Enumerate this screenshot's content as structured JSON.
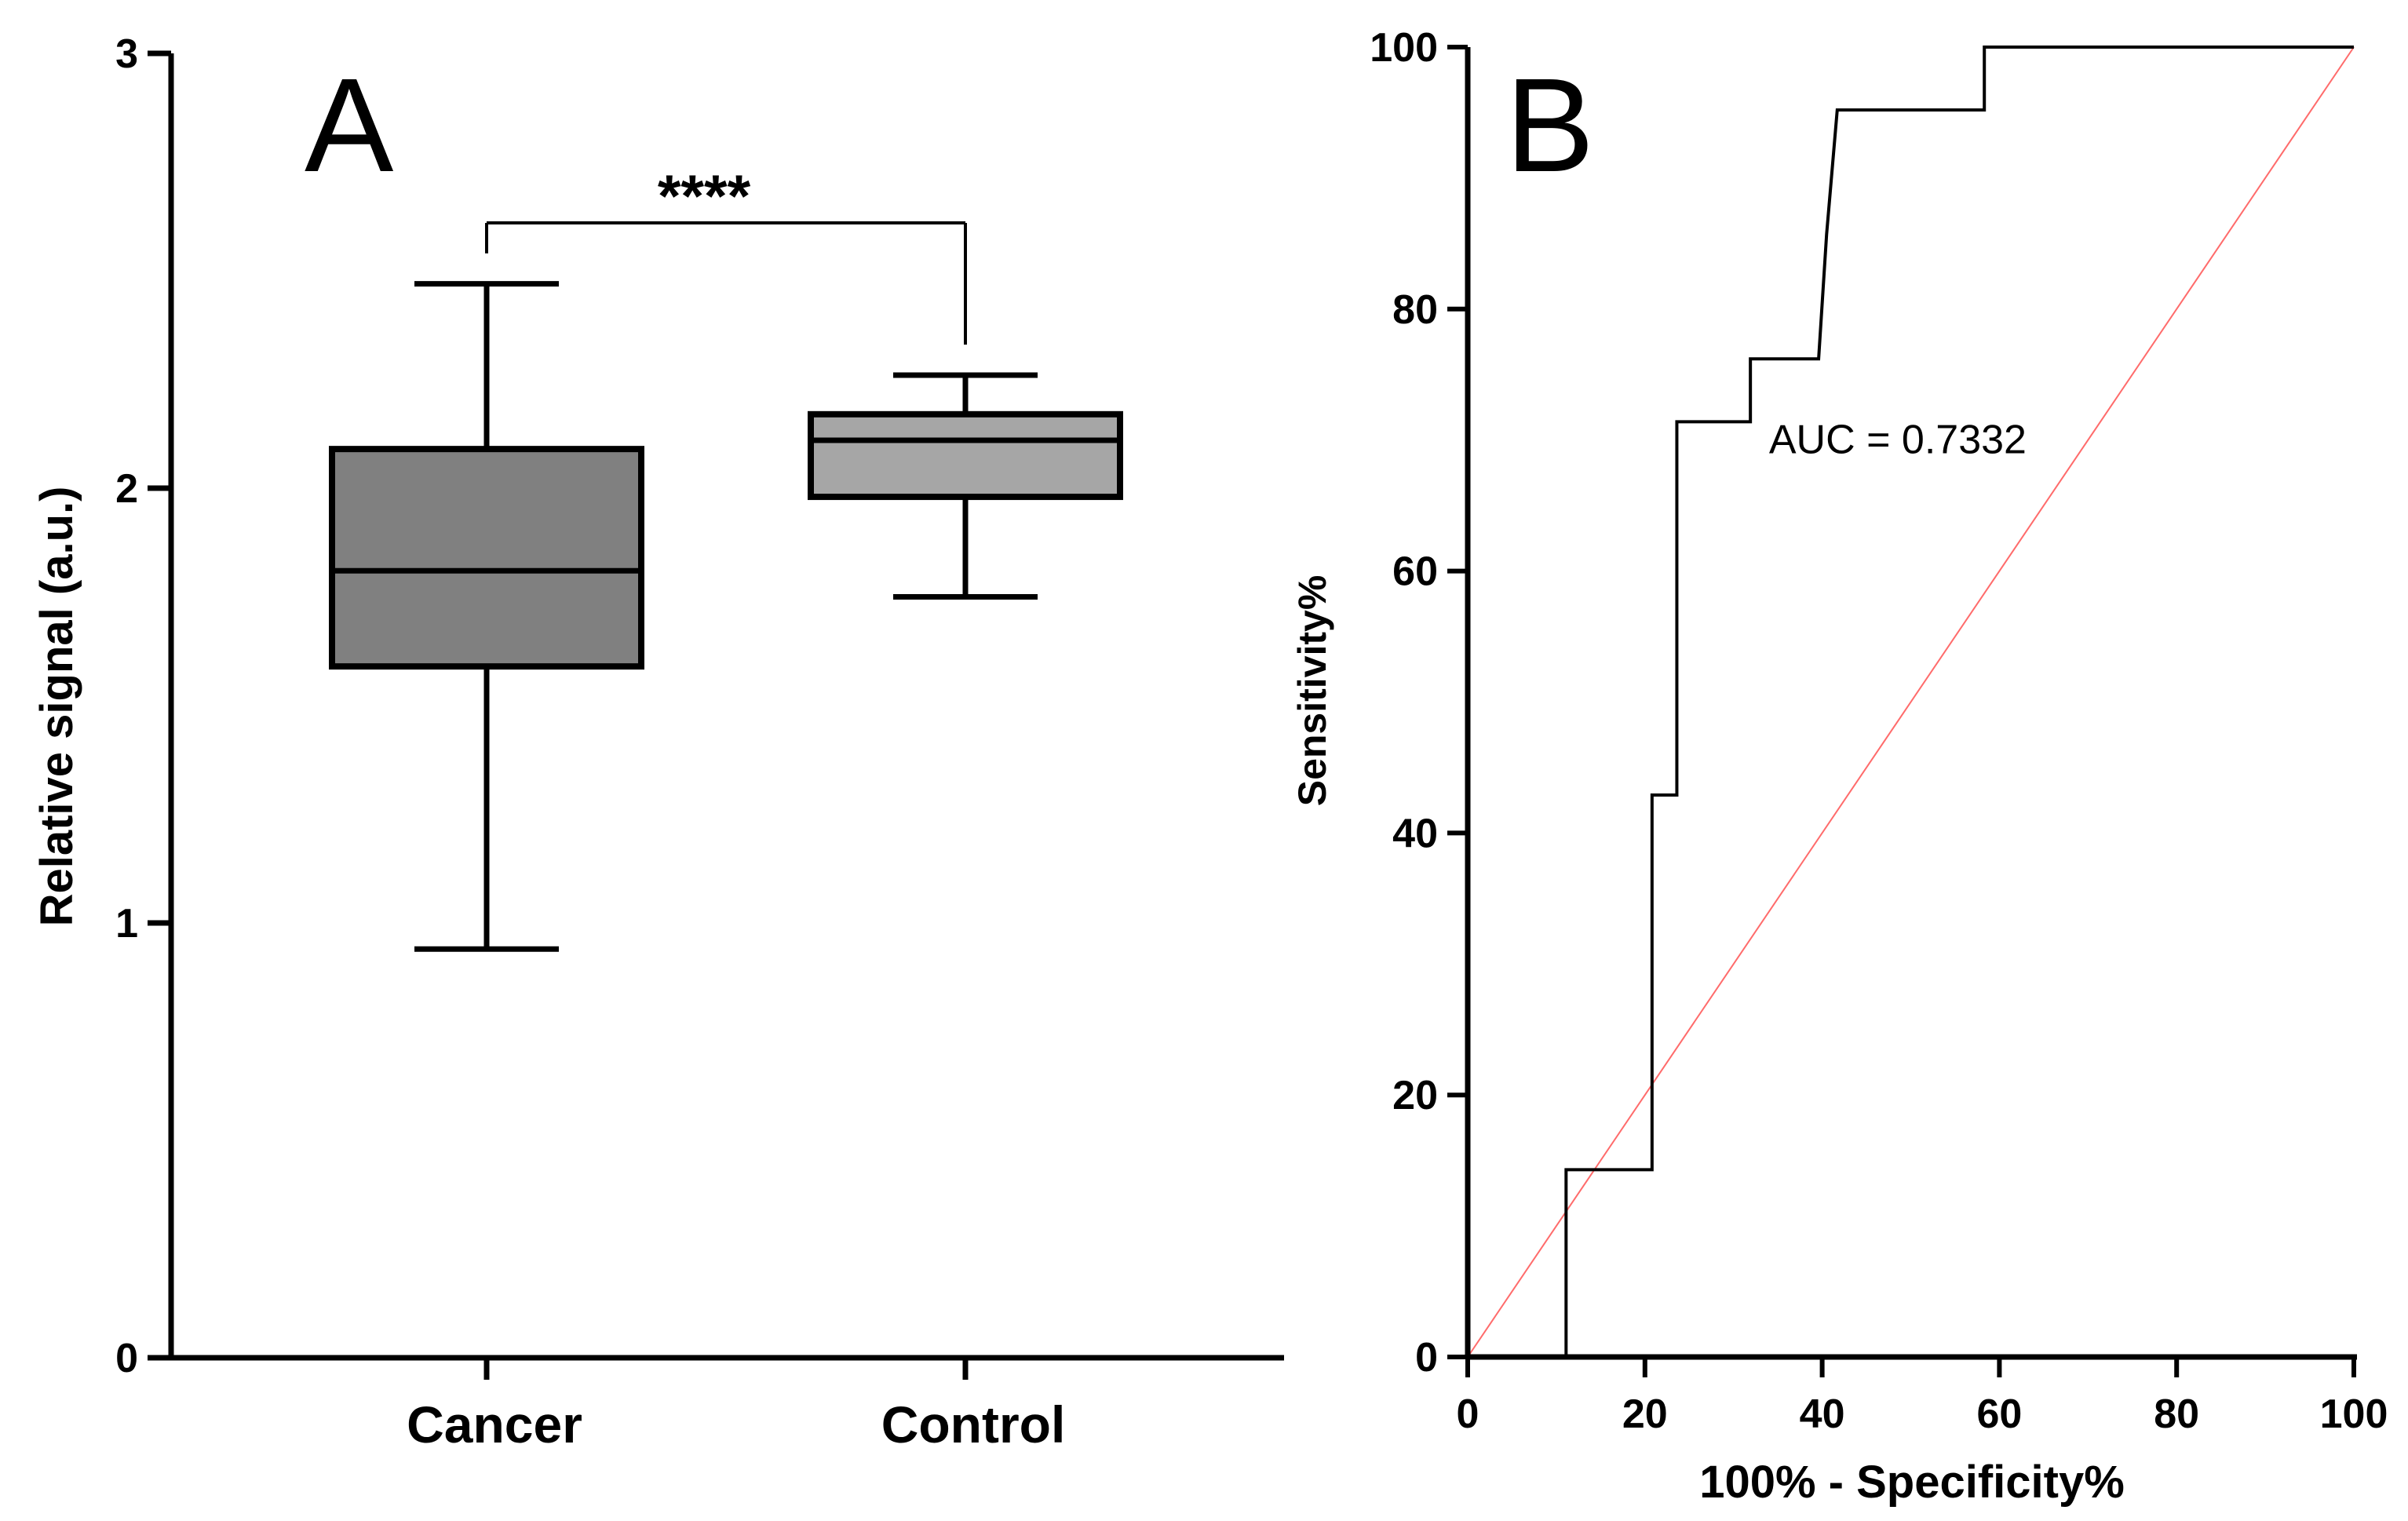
{
  "chart_data": [
    {
      "type": "box",
      "panel_label": "A",
      "ylabel": "Relative signal (a.u.)",
      "ylim": [
        0,
        3
      ],
      "yticks": [
        0,
        1,
        2,
        3
      ],
      "ytick_labels": [
        "0",
        "1",
        "2",
        "3"
      ],
      "categories": [
        "Cancer",
        "Control"
      ],
      "boxes": [
        {
          "name": "Cancer",
          "whisker_low": 0.94,
          "q1": 1.59,
          "median": 1.81,
          "q3": 2.09,
          "whisker_high": 2.47,
          "color": "#808080"
        },
        {
          "name": "Control",
          "whisker_low": 1.75,
          "q1": 1.98,
          "median": 2.11,
          "q3": 2.17,
          "whisker_high": 2.26,
          "color": "#a6a6a6"
        }
      ],
      "significance": {
        "label": "****",
        "between": [
          "Cancer",
          "Control"
        ],
        "bracket_y": 2.61,
        "left_leg_bottom": 2.54,
        "right_leg_bottom": 2.33
      }
    },
    {
      "type": "line",
      "panel_label": "B",
      "xlabel": "100% - Specificity%",
      "ylabel": "Sensitivity%",
      "xlim": [
        0,
        100
      ],
      "ylim": [
        0,
        100
      ],
      "xticks": [
        0,
        20,
        40,
        60,
        80,
        100
      ],
      "xtick_labels": [
        "0",
        "20",
        "40",
        "60",
        "80",
        "100"
      ],
      "yticks": [
        0,
        20,
        40,
        60,
        80,
        100
      ],
      "ytick_labels": [
        "0",
        "20",
        "40",
        "60",
        "80",
        "100"
      ],
      "series": [
        {
          "name": "ROC curve",
          "color": "#000000",
          "x": [
            11.1,
            11.1,
            20.8,
            20.8,
            23.6,
            23.6,
            24.8,
            24.8,
            31.9,
            31.9,
            39.6,
            40.5,
            40.5,
            41.7,
            41.7,
            58.3,
            58.3,
            100
          ],
          "y": [
            0,
            14.3,
            14.3,
            42.9,
            42.9,
            71.4,
            71.4,
            71.4,
            71.4,
            76.2,
            76.2,
            85.7,
            85.7,
            95.2,
            95.2,
            95.2,
            100,
            100
          ]
        },
        {
          "name": "Reference line",
          "color": "#ff6b6b",
          "x": [
            0,
            100
          ],
          "y": [
            0,
            100
          ]
        }
      ],
      "annotation": {
        "text": "AUC = 0.7332",
        "x": 34,
        "y": 69
      }
    }
  ]
}
